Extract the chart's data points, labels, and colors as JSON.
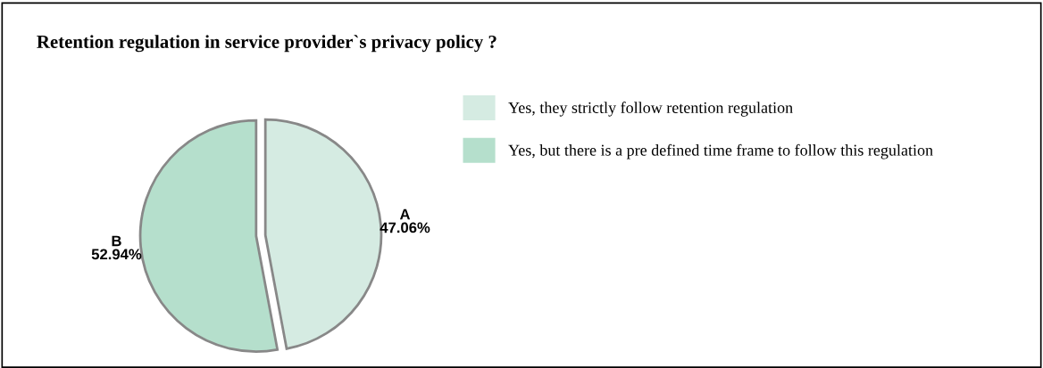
{
  "chart_data": {
    "type": "pie",
    "title": "Retention regulation in service provider`s privacy policy ?",
    "categories": [
      "Yes, they strictly follow retention regulation",
      "Yes, but there is a pre defined time frame to follow this regulation"
    ],
    "values": [
      47.06,
      52.94
    ],
    "colors": [
      "#d5ebe2",
      "#b5dfcc"
    ],
    "annotations": [
      "A",
      "B"
    ],
    "value_labels": [
      "47.06%",
      "52.94%"
    ],
    "legend": "right"
  }
}
